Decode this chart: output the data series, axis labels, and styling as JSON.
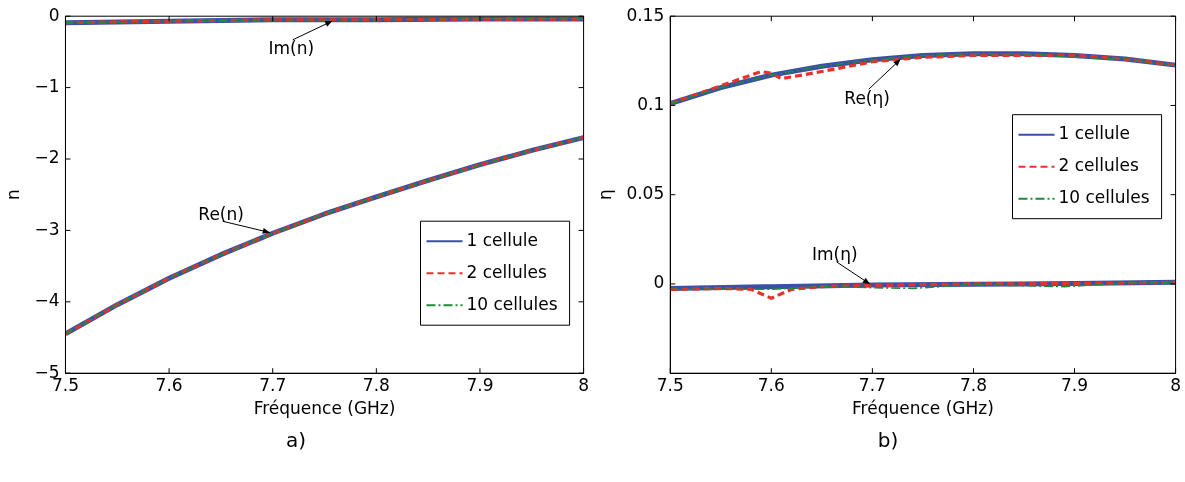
{
  "chart_data": [
    {
      "type": "line",
      "xlabel": "Fréquence (GHz)",
      "ylabel": "n",
      "xlim": [
        7.5,
        8
      ],
      "xticks": [
        7.5,
        7.6,
        7.7,
        7.8,
        7.9,
        8
      ],
      "ylim": [
        -5,
        0
      ],
      "yticks": [
        -5,
        -4,
        -3,
        -2,
        -1,
        0
      ],
      "grid": false,
      "legend": "bottom right",
      "marker": "none",
      "annotations": [
        {
          "text": "Im(n)",
          "x": 7.76,
          "y": -0.05
        },
        {
          "text": "Re(n)",
          "x": 7.7,
          "y": -3.04
        },
        "a)"
      ],
      "series": [
        {
          "name": "1 cellule",
          "color": "#3a4fa8",
          "line_style": "solid",
          "x": [
            7.5,
            7.55,
            7.6,
            7.65,
            7.7,
            7.75,
            7.8,
            7.85,
            7.9,
            7.95,
            8
          ],
          "values": [
            -4.45,
            -4.04,
            -3.67,
            -3.34,
            -3.04,
            -2.77,
            -2.53,
            -2.3,
            -2.08,
            -1.88,
            -1.7
          ]
        },
        {
          "name": "2 cellules",
          "color": "#e8312a",
          "line_style": "dashed",
          "x": [
            7.5,
            7.55,
            7.6,
            7.65,
            7.7,
            7.75,
            7.8,
            7.85,
            7.9,
            7.95,
            8
          ],
          "values": [
            -4.45,
            -4.04,
            -3.67,
            -3.34,
            -3.04,
            -2.77,
            -2.53,
            -2.3,
            -2.08,
            -1.88,
            -1.7
          ]
        },
        {
          "name": "10 cellules",
          "color": "#1f8a3c",
          "line_style": "dashdot",
          "x": [
            7.5,
            7.55,
            7.6,
            7.65,
            7.7,
            7.75,
            7.8,
            7.85,
            7.9,
            7.95,
            8
          ],
          "values": [
            -4.45,
            -4.04,
            -3.67,
            -3.34,
            -3.04,
            -2.77,
            -2.53,
            -2.3,
            -2.08,
            -1.88,
            -1.7
          ]
        },
        {
          "color": "#3a4fa8",
          "line_style": "solid",
          "x": [
            7.5,
            7.6,
            7.7,
            7.8,
            7.9,
            8
          ],
          "values": [
            -0.09,
            -0.07,
            -0.05,
            -0.05,
            -0.04,
            -0.04
          ]
        },
        {
          "color": "#e8312a",
          "line_style": "dashed",
          "x": [
            7.5,
            7.6,
            7.7,
            7.8,
            7.9,
            8
          ],
          "values": [
            -0.09,
            -0.07,
            -0.05,
            -0.05,
            -0.04,
            -0.04
          ]
        },
        {
          "color": "#1f8a3c",
          "line_style": "dashdot",
          "x": [
            7.5,
            7.6,
            7.7,
            7.8,
            7.9,
            8
          ],
          "values": [
            -0.09,
            -0.07,
            -0.05,
            -0.05,
            -0.04,
            -0.04
          ]
        }
      ]
    },
    {
      "type": "line",
      "xlabel": "Fréquence (GHz)",
      "ylabel": "η",
      "xlim": [
        7.5,
        8
      ],
      "xticks": [
        7.5,
        7.6,
        7.7,
        7.8,
        7.9,
        8
      ],
      "ylim": [
        -0.05,
        0.15
      ],
      "yticks": [
        0,
        0.05,
        0.1,
        0.15
      ],
      "grid": false,
      "legend": "right",
      "marker": "none",
      "annotations": [
        {
          "text": "Re(η)",
          "x": 7.73,
          "y": 0.127
        },
        {
          "text": "Im(η)",
          "x": 7.7,
          "y": -0.001
        },
        "b)"
      ],
      "series": [
        {
          "name": "1 cellule",
          "color": "#3a4fa8",
          "line_style": "solid",
          "x": [
            7.5,
            7.55,
            7.6,
            7.65,
            7.7,
            7.75,
            7.8,
            7.85,
            7.9,
            7.95,
            8
          ],
          "values": [
            0.101,
            0.11,
            0.117,
            0.122,
            0.1256,
            0.128,
            0.129,
            0.129,
            0.128,
            0.126,
            0.1226
          ]
        },
        {
          "name": "2 cellules",
          "color": "#e8312a",
          "line_style": "dashed",
          "x": [
            7.5,
            7.55,
            7.59,
            7.6,
            7.61,
            7.65,
            7.7,
            7.75,
            7.8,
            7.85,
            7.9,
            7.95,
            8
          ],
          "values": [
            0.101,
            0.111,
            0.119,
            0.118,
            0.115,
            0.119,
            0.1245,
            0.127,
            0.128,
            0.128,
            0.128,
            0.126,
            0.1226
          ]
        },
        {
          "name": "10 cellules",
          "color": "#1f8a3c",
          "line_style": "dashdot",
          "x": [
            7.5,
            7.55,
            7.6,
            7.65,
            7.7,
            7.75,
            7.8,
            7.85,
            7.9,
            7.95,
            8
          ],
          "values": [
            0.101,
            0.11,
            0.117,
            0.122,
            0.1256,
            0.128,
            0.129,
            0.129,
            0.127,
            0.126,
            0.1226
          ]
        },
        {
          "color": "#3a4fa8",
          "line_style": "solid",
          "x": [
            7.5,
            7.6,
            7.7,
            7.8,
            7.9,
            8
          ],
          "values": [
            -0.0026,
            -0.0015,
            -0.0006,
            -0.0002,
            0.0002,
            0.0009
          ]
        },
        {
          "color": "#e8312a",
          "line_style": "dashed",
          "x": [
            7.5,
            7.55,
            7.58,
            7.6,
            7.62,
            7.65,
            7.7,
            7.8,
            7.9,
            8
          ],
          "values": [
            -0.003,
            -0.0025,
            -0.003,
            -0.008,
            -0.003,
            -0.0015,
            -0.0008,
            0,
            0.0002,
            0.0009
          ]
        },
        {
          "color": "#1f8a3c",
          "line_style": "dashdot",
          "x": [
            7.5,
            7.6,
            7.65,
            7.74,
            7.8,
            7.89,
            7.95,
            8
          ],
          "values": [
            -0.003,
            -0.003,
            -0.0015,
            -0.0025,
            -0.0003,
            -0.0015,
            0.0005,
            0.0009
          ]
        }
      ]
    }
  ]
}
